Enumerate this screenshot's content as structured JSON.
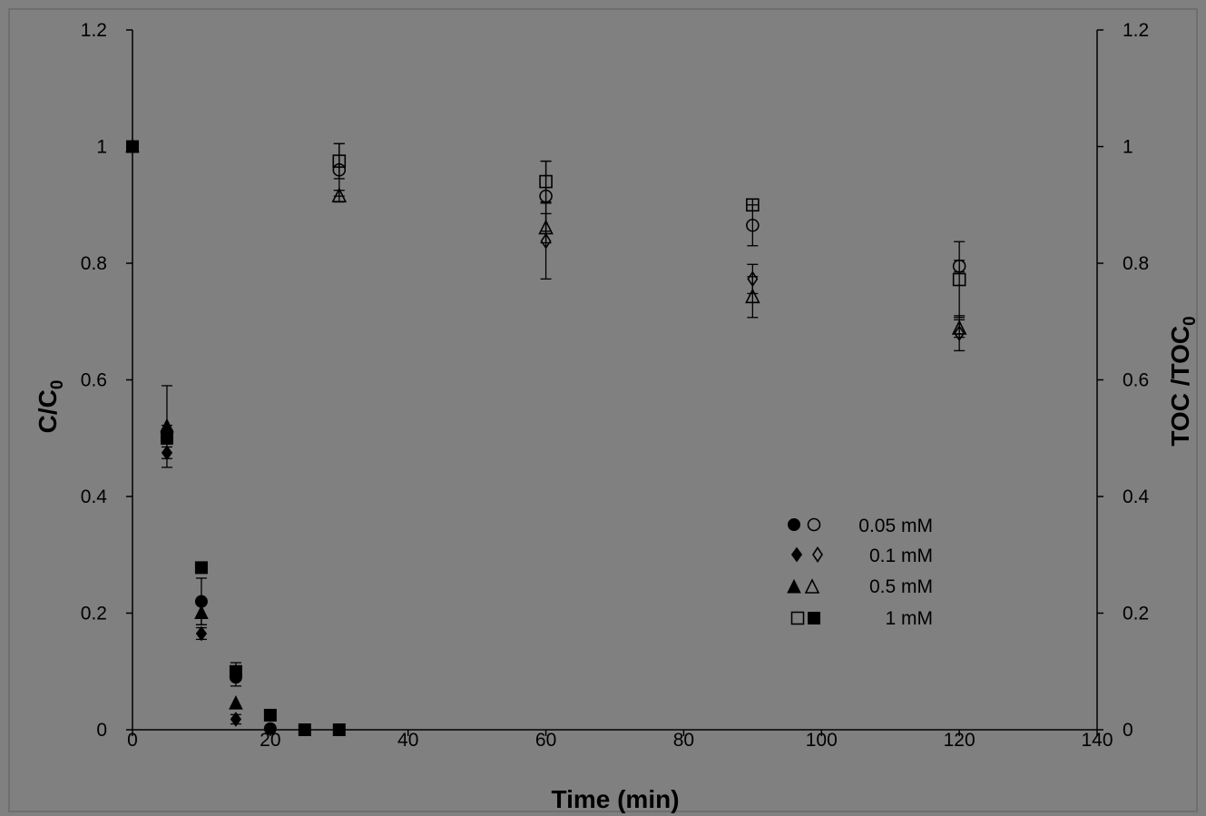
{
  "chart_data": {
    "type": "scatter",
    "background_color": "#808080",
    "frame_color": "#6f6f6f",
    "xlabel": "Time (min)",
    "ylabel_left": "C/C",
    "ylabel_left_sub": "0",
    "ylabel_right": "TOC /TOC",
    "ylabel_right_sub": "0",
    "xlim": [
      0,
      140
    ],
    "ylim": [
      0,
      1.2
    ],
    "x_ticks": [
      "0",
      "20",
      "40",
      "60",
      "80",
      "100",
      "120",
      "140"
    ],
    "y_ticks": [
      "0",
      "0.2",
      "0.4",
      "0.6",
      "0.8",
      "1",
      "1.2"
    ],
    "legend_position": "center-right",
    "legend": [
      {
        "label": "0.05 mM",
        "filled_marker": "circle",
        "open_marker": "circle",
        "order": "filled-open"
      },
      {
        "label": "0.1 mM",
        "filled_marker": "diamond",
        "open_marker": "diamond",
        "order": "filled-open"
      },
      {
        "label": "0.5 mM",
        "filled_marker": "triangle",
        "open_marker": "triangle",
        "order": "filled-open"
      },
      {
        "label": "1 mM",
        "filled_marker": "square",
        "open_marker": "square",
        "order": "open-filled"
      }
    ],
    "series": [
      {
        "name": "0.05 mM",
        "axis": "left",
        "marker": "circle",
        "filled": true,
        "x": [
          0,
          5,
          10,
          15,
          20
        ],
        "y": [
          1,
          0.51,
          0.22,
          0.09,
          0.002
        ],
        "err": [
          0,
          0.012,
          0.04,
          0.015,
          0
        ]
      },
      {
        "name": "0.1 mM",
        "axis": "left",
        "marker": "diamond",
        "filled": true,
        "x": [
          0,
          5,
          10,
          15
        ],
        "y": [
          1,
          0.475,
          0.165,
          0.018
        ],
        "err": [
          0,
          0.01,
          0.01,
          0.008
        ]
      },
      {
        "name": "0.5 mM",
        "axis": "left",
        "marker": "triangle",
        "filled": true,
        "x": [
          0,
          5,
          10,
          15
        ],
        "y": [
          1,
          0.52,
          0.2,
          0.045
        ],
        "err": [
          0,
          0.07,
          0.02,
          0
        ]
      },
      {
        "name": "1 mM",
        "axis": "left",
        "marker": "square",
        "filled": true,
        "x": [
          0,
          5,
          10,
          15,
          20,
          25,
          30
        ],
        "y": [
          1,
          0.5,
          0.278,
          0.1,
          0.025,
          0,
          0
        ],
        "err": [
          0,
          0.01,
          0,
          0.015,
          0,
          0,
          0
        ]
      },
      {
        "name": "0.05 mM",
        "axis": "right",
        "marker": "circle",
        "filled": false,
        "x": [
          30,
          60,
          90,
          120
        ],
        "y": [
          0.96,
          0.915,
          0.865,
          0.795
        ],
        "err": [
          0.045,
          0.06,
          0.035,
          0.01
        ]
      },
      {
        "name": "0.1 mM",
        "axis": "right",
        "marker": "diamond",
        "filled": false,
        "x": [
          60,
          90,
          120
        ],
        "y": [
          0.838,
          0.773,
          0.68
        ],
        "err": [
          0.065,
          0.025,
          0.03
        ]
      },
      {
        "name": "0.5 mM",
        "axis": "right",
        "marker": "triangle",
        "filled": false,
        "x": [
          30,
          60,
          90,
          120
        ],
        "y": [
          0.915,
          0.86,
          0.742,
          0.688
        ],
        "err": [
          0.01,
          0.025,
          0.035,
          0.015
        ]
      },
      {
        "name": "1 mM",
        "axis": "right",
        "marker": "square",
        "filled": false,
        "x": [
          30,
          60,
          90,
          120
        ],
        "y": [
          0.975,
          0.94,
          0.9,
          0.772
        ],
        "err": [
          0.03,
          0.035,
          0.01,
          0.065
        ]
      }
    ]
  }
}
